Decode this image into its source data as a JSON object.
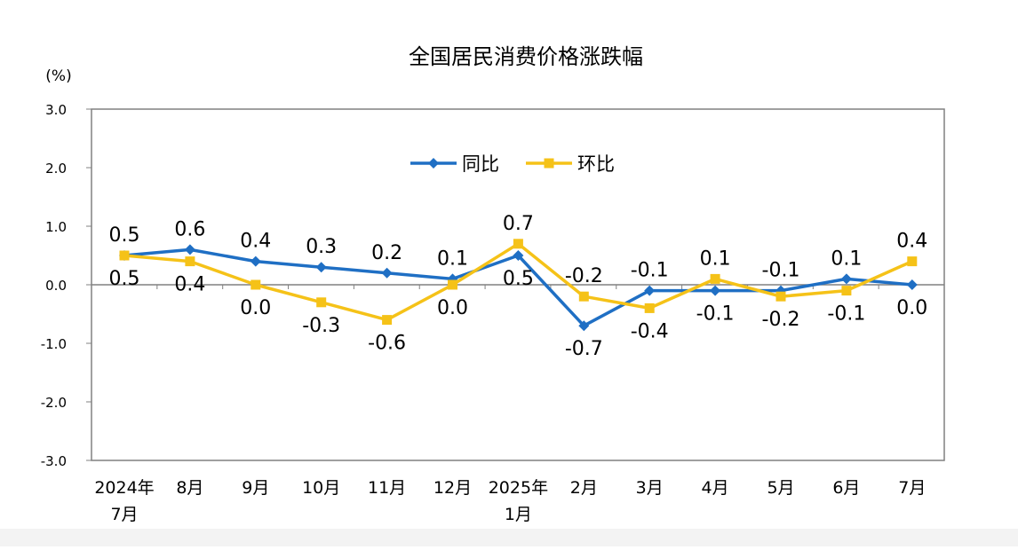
{
  "chart_data": {
    "type": "line",
    "title": "全国居民消费价格涨跌幅",
    "unit_label": "(%)",
    "categories": [
      {
        "line1": "2024年",
        "line2": "7月"
      },
      {
        "line1": "8月",
        "line2": ""
      },
      {
        "line1": "9月",
        "line2": ""
      },
      {
        "line1": "10月",
        "line2": ""
      },
      {
        "line1": "11月",
        "line2": ""
      },
      {
        "line1": "12月",
        "line2": ""
      },
      {
        "line1": "2025年",
        "line2": "1月"
      },
      {
        "line1": "2月",
        "line2": ""
      },
      {
        "line1": "3月",
        "line2": ""
      },
      {
        "line1": "4月",
        "line2": ""
      },
      {
        "line1": "5月",
        "line2": ""
      },
      {
        "line1": "6月",
        "line2": ""
      },
      {
        "line1": "7月",
        "line2": ""
      }
    ],
    "ylim": [
      -3.0,
      3.0
    ],
    "yticks": [
      3.0,
      2.0,
      1.0,
      0.0,
      -1.0,
      -2.0,
      -3.0
    ],
    "ytick_labels": [
      "3.0",
      "2.0",
      "1.0",
      "0.0",
      "-1.0",
      "-2.0",
      "-3.0"
    ],
    "legend_position": "top-center",
    "grid": false,
    "series": [
      {
        "name": "同比",
        "color": "#1f6fc4",
        "marker": "diamond",
        "values": [
          0.5,
          0.6,
          0.4,
          0.3,
          0.2,
          0.1,
          0.5,
          -0.7,
          -0.1,
          -0.1,
          -0.1,
          0.1,
          0.0
        ],
        "labels": [
          "0.5",
          "0.6",
          "0.4",
          "0.3",
          "0.2",
          "0.1",
          "0.5",
          "-0.7",
          "-0.1",
          "-0.1",
          "-0.1",
          "0.1",
          "0.0"
        ],
        "label_side": [
          "above",
          "above",
          "above",
          "above",
          "above",
          "above",
          "below",
          "below",
          "above",
          "below",
          "above",
          "above",
          "below"
        ]
      },
      {
        "name": "环比",
        "color": "#f5c218",
        "marker": "square",
        "values": [
          0.5,
          0.4,
          0.0,
          -0.3,
          -0.6,
          0.0,
          0.7,
          -0.2,
          -0.4,
          0.1,
          -0.2,
          -0.1,
          0.4
        ],
        "labels": [
          "0.5",
          "0.4",
          "0.0",
          "-0.3",
          "-0.6",
          "0.0",
          "0.7",
          "-0.2",
          "-0.4",
          "0.1",
          "-0.2",
          "-0.1",
          "0.4"
        ],
        "label_side": [
          "below",
          "below",
          "below",
          "below",
          "below",
          "below",
          "above",
          "above",
          "below",
          "above",
          "below",
          "below",
          "above"
        ]
      }
    ]
  }
}
